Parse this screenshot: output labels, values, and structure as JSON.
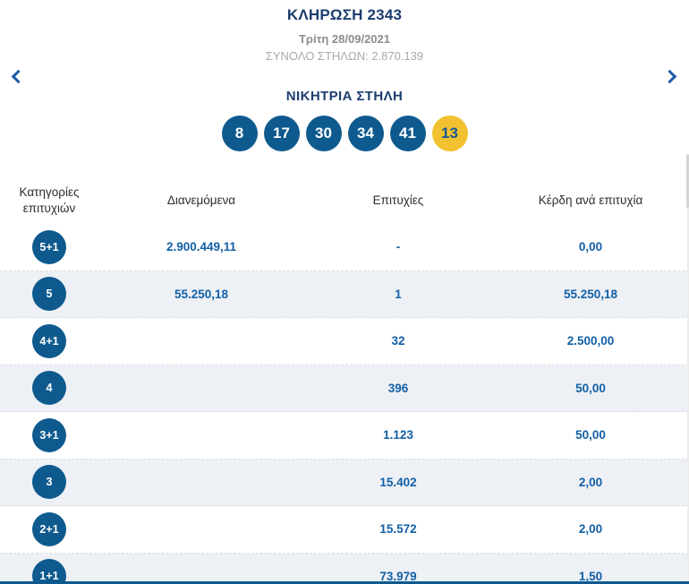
{
  "header": {
    "title": "ΚΛΗΡΩΣΗ 2343",
    "date": "Τρίτη 28/09/2021",
    "columns_total": "ΣΥΝΟΛΟ ΣΤΗΛΩΝ: 2.870.139"
  },
  "nav": {
    "prev_icon": "chevron-left",
    "next_icon": "chevron-right"
  },
  "winning": {
    "heading": "ΝΙΚΗΤΡΙΑ ΣΤΗΛΗ",
    "numbers": [
      "8",
      "17",
      "30",
      "34",
      "41"
    ],
    "joker": "13"
  },
  "table": {
    "headers": [
      "Κατηγορίες επιτυχιών",
      "Διανεμόμενα",
      "Επιτυχίες",
      "Κέρδη ανά επιτυχία"
    ],
    "rows": [
      {
        "category": "5+1",
        "distributed": "2.900.449,11",
        "winners": "-",
        "prize": "0,00"
      },
      {
        "category": "5",
        "distributed": "55.250,18",
        "winners": "1",
        "prize": "55.250,18"
      },
      {
        "category": "4+1",
        "distributed": "",
        "winners": "32",
        "prize": "2.500,00"
      },
      {
        "category": "4",
        "distributed": "",
        "winners": "396",
        "prize": "50,00"
      },
      {
        "category": "3+1",
        "distributed": "",
        "winners": "1.123",
        "prize": "50,00"
      },
      {
        "category": "3",
        "distributed": "",
        "winners": "15.402",
        "prize": "2,00"
      },
      {
        "category": "2+1",
        "distributed": "",
        "winners": "15.572",
        "prize": "2,00"
      },
      {
        "category": "1+1",
        "distributed": "",
        "winners": "73.979",
        "prize": "1,50"
      }
    ]
  },
  "colors": {
    "primary_blue": "#0e5a8e",
    "heading_navy": "#1c3d6e",
    "value_blue": "#1160a5",
    "joker_yellow": "#f1c12f",
    "stripe_bg": "#edf0f5"
  }
}
